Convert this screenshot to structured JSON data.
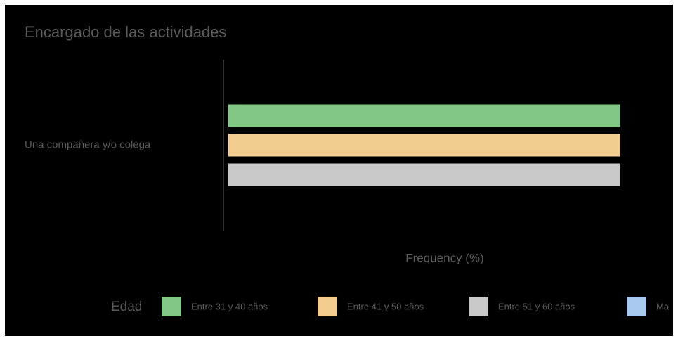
{
  "chart_data": {
    "type": "barh",
    "title": "Encargado de las actividades",
    "categories": [
      "Una compañera y/o colega"
    ],
    "series": [
      {
        "name": "Entre 31 y 40 años",
        "color": "#82c785",
        "values": [
          100
        ]
      },
      {
        "name": "Entre 41 y 50 años",
        "color": "#f3cc8f",
        "values": [
          100
        ]
      },
      {
        "name": "Entre 51 y 60 años",
        "color": "#c8c8c8",
        "values": [
          100
        ]
      },
      {
        "name": "Ma",
        "color": "#a8c8f0",
        "values": [
          null
        ]
      }
    ],
    "xlabel": "Frequency (%)",
    "legend_title": "Edad",
    "legend": "bottom",
    "xlim": [
      0,
      100
    ]
  }
}
